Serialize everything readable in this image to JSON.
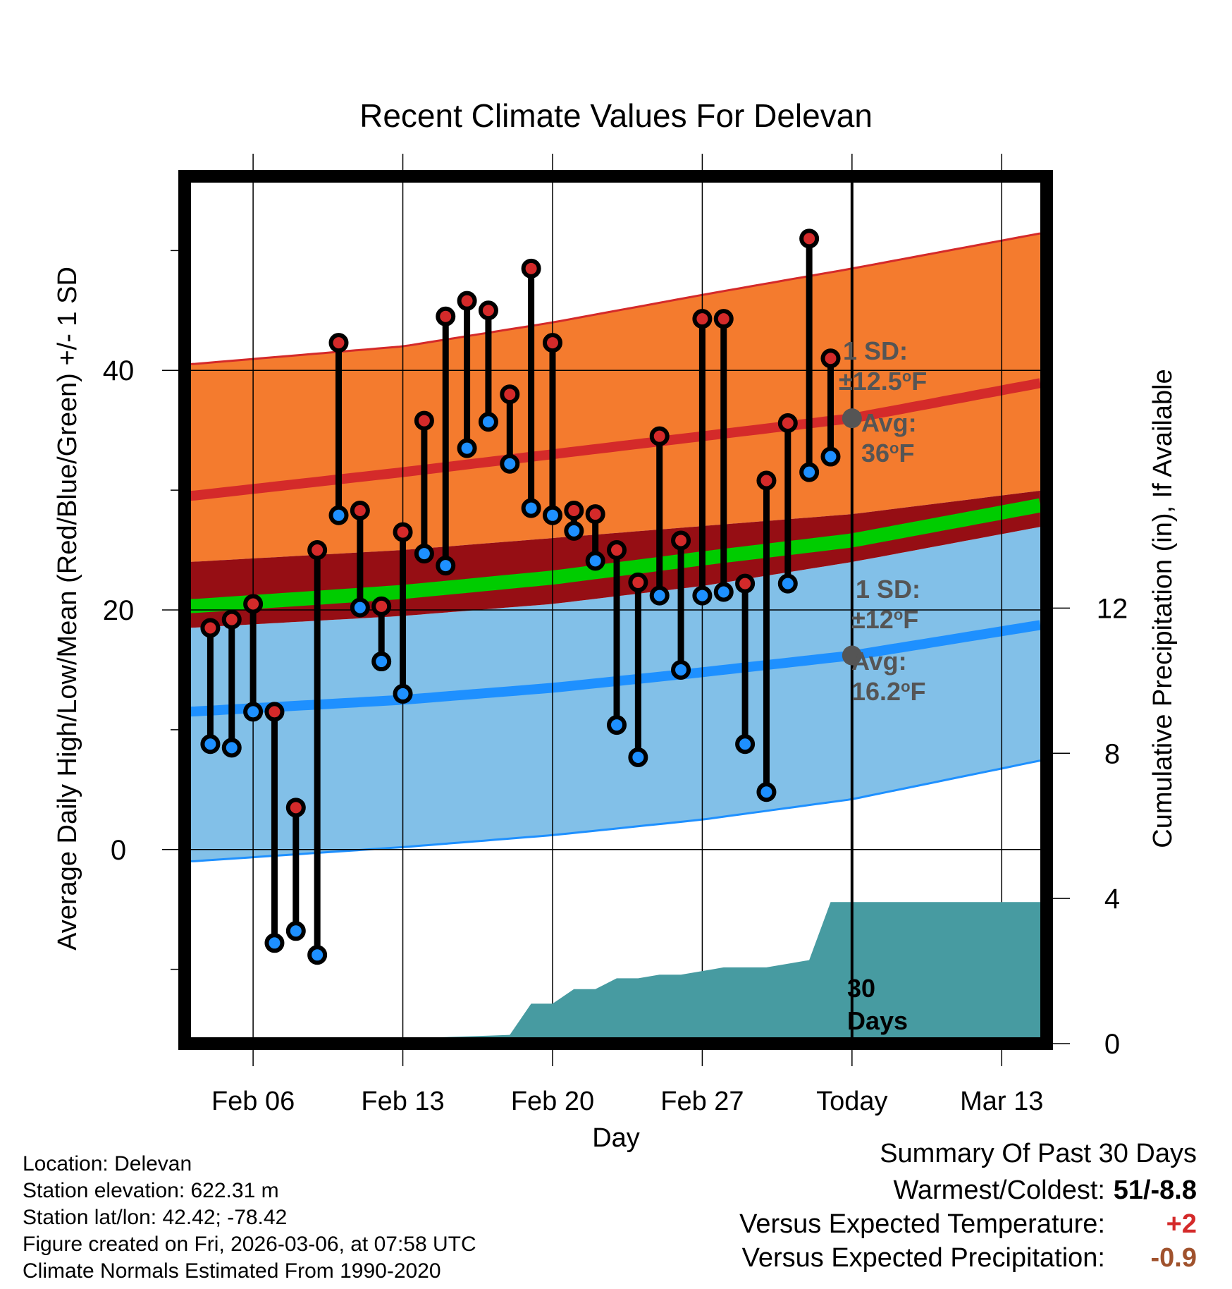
{
  "chart_data": {
    "type": "line",
    "title": "Recent Climate Values For Delevan",
    "xlabel": "Day",
    "ylabel_left": "Average Daily High/Low/Mean (Red/Blue/Green) +/- 1 SD",
    "ylabel_right": "Cumulative Precipitation (in), If Available",
    "x_tick_labels": [
      "Feb 06",
      "Feb 13",
      "Feb 20",
      "Feb 27",
      "Today",
      "Mar 13"
    ],
    "x_tick_days": [
      6,
      13,
      20,
      27,
      34,
      41
    ],
    "xlim": [
      2.8,
      43.1
    ],
    "today_day": 34,
    "y_left_ticks": [
      "0",
      "20",
      "40"
    ],
    "y_left_values": [
      0,
      20,
      40
    ],
    "ylim_left": [
      -16.2,
      56.2
    ],
    "y_right_ticks": [
      "0",
      "4",
      "8",
      "12"
    ],
    "y_right_values": [
      0,
      4,
      8,
      12
    ],
    "ylim_right": [
      0,
      23.9
    ],
    "normal_high": {
      "mean": [
        [
          3,
          29.5
        ],
        [
          13,
          31.5
        ],
        [
          20,
          33.0
        ],
        [
          27,
          34.5
        ],
        [
          34,
          36.0
        ],
        [
          43,
          39.0
        ]
      ],
      "upper": [
        [
          3,
          40.5
        ],
        [
          13,
          42.0
        ],
        [
          20,
          44.0
        ],
        [
          27,
          46.3
        ],
        [
          34,
          48.5
        ],
        [
          43,
          51.5
        ]
      ],
      "lower": [
        [
          3,
          24.0
        ],
        [
          13,
          25.0
        ],
        [
          20,
          26.0
        ],
        [
          27,
          27.0
        ],
        [
          34,
          28.0
        ],
        [
          43,
          30.0
        ]
      ]
    },
    "normal_low": {
      "mean": [
        [
          3,
          11.5
        ],
        [
          13,
          12.5
        ],
        [
          20,
          13.5
        ],
        [
          27,
          14.8
        ],
        [
          34,
          16.2
        ],
        [
          43,
          18.8
        ]
      ],
      "upper": [
        [
          3,
          18.5
        ],
        [
          13,
          19.5
        ],
        [
          20,
          20.5
        ],
        [
          27,
          22.0
        ],
        [
          34,
          24.0
        ],
        [
          43,
          27.0
        ]
      ],
      "lower": [
        [
          3,
          -1.0
        ],
        [
          13,
          0.2
        ],
        [
          20,
          1.2
        ],
        [
          27,
          2.5
        ],
        [
          34,
          4.2
        ],
        [
          43,
          7.5
        ]
      ]
    },
    "normal_mean": {
      "mean": [
        [
          3,
          20.3
        ],
        [
          13,
          21.5
        ],
        [
          20,
          22.7
        ],
        [
          27,
          24.3
        ],
        [
          34,
          25.8
        ],
        [
          43,
          28.8
        ]
      ],
      "upper": [
        [
          3,
          24.0
        ],
        [
          13,
          25.0
        ],
        [
          20,
          26.0
        ],
        [
          27,
          27.0
        ],
        [
          34,
          28.0
        ],
        [
          43,
          30.0
        ]
      ],
      "lower": [
        [
          3,
          18.5
        ],
        [
          13,
          19.5
        ],
        [
          20,
          20.5
        ],
        [
          27,
          22.0
        ],
        [
          34,
          24.0
        ],
        [
          43,
          27.0
        ]
      ]
    },
    "series": [
      {
        "name": "Daily High",
        "color": "#d42a2a",
        "days": [
          4,
          5,
          6,
          7,
          8,
          9,
          10,
          11,
          12,
          13,
          14,
          15,
          16,
          17,
          18,
          19,
          20,
          21,
          22,
          23,
          24,
          25,
          26,
          27,
          28,
          29,
          30,
          31,
          32,
          33
        ],
        "values": [
          18.5,
          19.2,
          20.5,
          11.5,
          3.5,
          25.0,
          42.3,
          28.3,
          20.3,
          26.5,
          35.8,
          44.5,
          45.8,
          45.0,
          38.0,
          48.5,
          42.3,
          28.3,
          28.0,
          25.0,
          22.3,
          34.5,
          25.8,
          44.3,
          44.3,
          22.2,
          30.8,
          35.6,
          51.0,
          41.0
        ]
      },
      {
        "name": "Daily Low",
        "color": "#1e90ff",
        "days": [
          4,
          5,
          6,
          7,
          8,
          9,
          10,
          11,
          12,
          13,
          14,
          15,
          16,
          17,
          18,
          19,
          20,
          21,
          22,
          23,
          24,
          25,
          26,
          27,
          28,
          29,
          30,
          31,
          32,
          33
        ],
        "values": [
          8.8,
          8.5,
          11.5,
          -7.8,
          -6.8,
          -8.8,
          27.9,
          20.2,
          15.7,
          13.0,
          24.7,
          23.7,
          33.5,
          35.7,
          32.2,
          28.5,
          27.9,
          26.6,
          24.1,
          10.4,
          7.7,
          21.2,
          15.0,
          21.2,
          21.5,
          8.8,
          4.8,
          22.2,
          31.5,
          32.8
        ]
      }
    ],
    "precipitation": {
      "name": "Cumulative Precipitation",
      "days": [
        3,
        9.5,
        10,
        11,
        12,
        13,
        14,
        15,
        16,
        17,
        18,
        19,
        20,
        21,
        22,
        23,
        24,
        25,
        26,
        27,
        28,
        29,
        30,
        31,
        32,
        33,
        34,
        43.1
      ],
      "values": [
        0,
        0,
        0.05,
        0.1,
        0.12,
        0.14,
        0.16,
        0.18,
        0.2,
        0.22,
        0.24,
        1.1,
        1.1,
        1.5,
        1.5,
        1.8,
        1.8,
        1.9,
        1.9,
        2.0,
        2.1,
        2.1,
        2.1,
        2.2,
        2.3,
        3.9,
        3.9,
        3.9
      ]
    },
    "annotations": {
      "high_sd_label": "1 SD:",
      "high_sd_value": "±12.5",
      "high_avg_label": "Avg:",
      "high_avg_value": "36",
      "high_avg_temp": 36.0,
      "low_sd_label": "1 SD:",
      "low_sd_value": "±12",
      "low_avg_label": "Avg:",
      "low_avg_value": "16.2",
      "low_avg_temp": 16.2,
      "degree_mark": "o",
      "unit": "F",
      "days_label_line1": "30",
      "days_label_line2": "Days"
    },
    "colors": {
      "high_band": "#f47b2e",
      "high_line": "#d42a2a",
      "low_band": "#82c0e8",
      "low_line": "#1e90ff",
      "mean_band": "#960e14",
      "mean_line": "#00cc00",
      "precip_fill": "#479ba1",
      "annotation_text": "#555555",
      "avg_marker": "#555555"
    }
  },
  "footer": {
    "location": "Location: Delevan",
    "elevation": "Station elevation: 622.31 m",
    "latlon": "Station lat/lon: 42.42; -78.42",
    "created": "Figure created on Fri, 2026-03-06, at 07:58 UTC",
    "normals": "Climate Normals Estimated From 1990-2020"
  },
  "summary": {
    "title": "Summary Of Past 30 Days",
    "warm_cold_label": "Warmest/Coldest:",
    "warm_cold_value": "51/-8.8",
    "temp_label": "Versus Expected Temperature:",
    "temp_value": "+2",
    "temp_color": "#d42a2a",
    "precip_label": "Versus Expected Precipitation:",
    "precip_value": "-0.9",
    "precip_color": "#a0522d"
  }
}
